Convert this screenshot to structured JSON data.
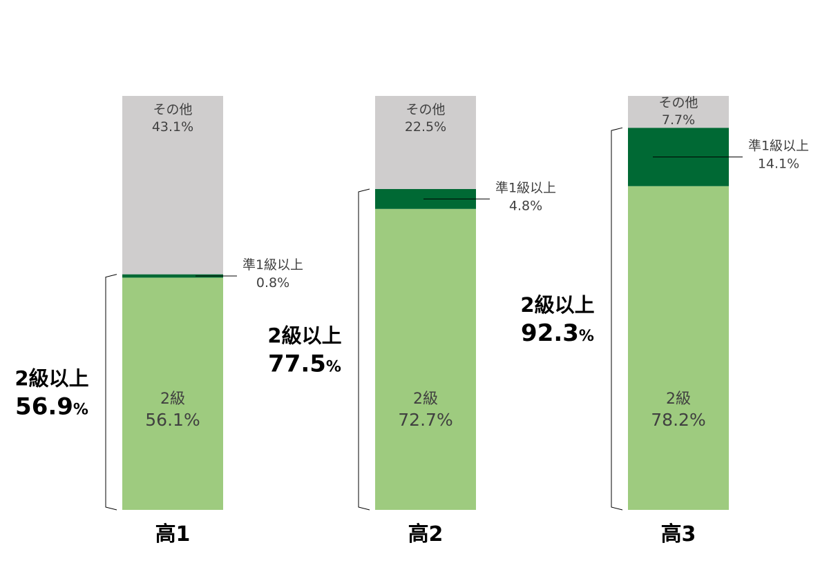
{
  "chart_data": {
    "type": "bar",
    "stacked": true,
    "categories": [
      "高1",
      "高2",
      "高3"
    ],
    "ylim": [
      0,
      100
    ],
    "series": [
      {
        "name": "2級",
        "values": [
          56.1,
          72.7,
          78.2
        ],
        "labels": [
          "56.1%",
          "72.7%",
          "78.2%"
        ],
        "color": "#9ecb7f"
      },
      {
        "name": "準1級以上",
        "values": [
          0.8,
          4.8,
          14.1
        ],
        "labels": [
          "0.8%",
          "4.8%",
          "14.1%"
        ],
        "color": "#006934"
      },
      {
        "name": "その他",
        "values": [
          43.1,
          22.5,
          7.7
        ],
        "labels": [
          "43.1%",
          "22.5%",
          "7.7%"
        ],
        "color": "#cfcdcd"
      }
    ],
    "brackets": {
      "title": "2級以上",
      "values": [
        56.9,
        77.5,
        92.3
      ],
      "number_labels": [
        "56.9",
        "77.5",
        "92.3"
      ],
      "unit": "%"
    }
  }
}
